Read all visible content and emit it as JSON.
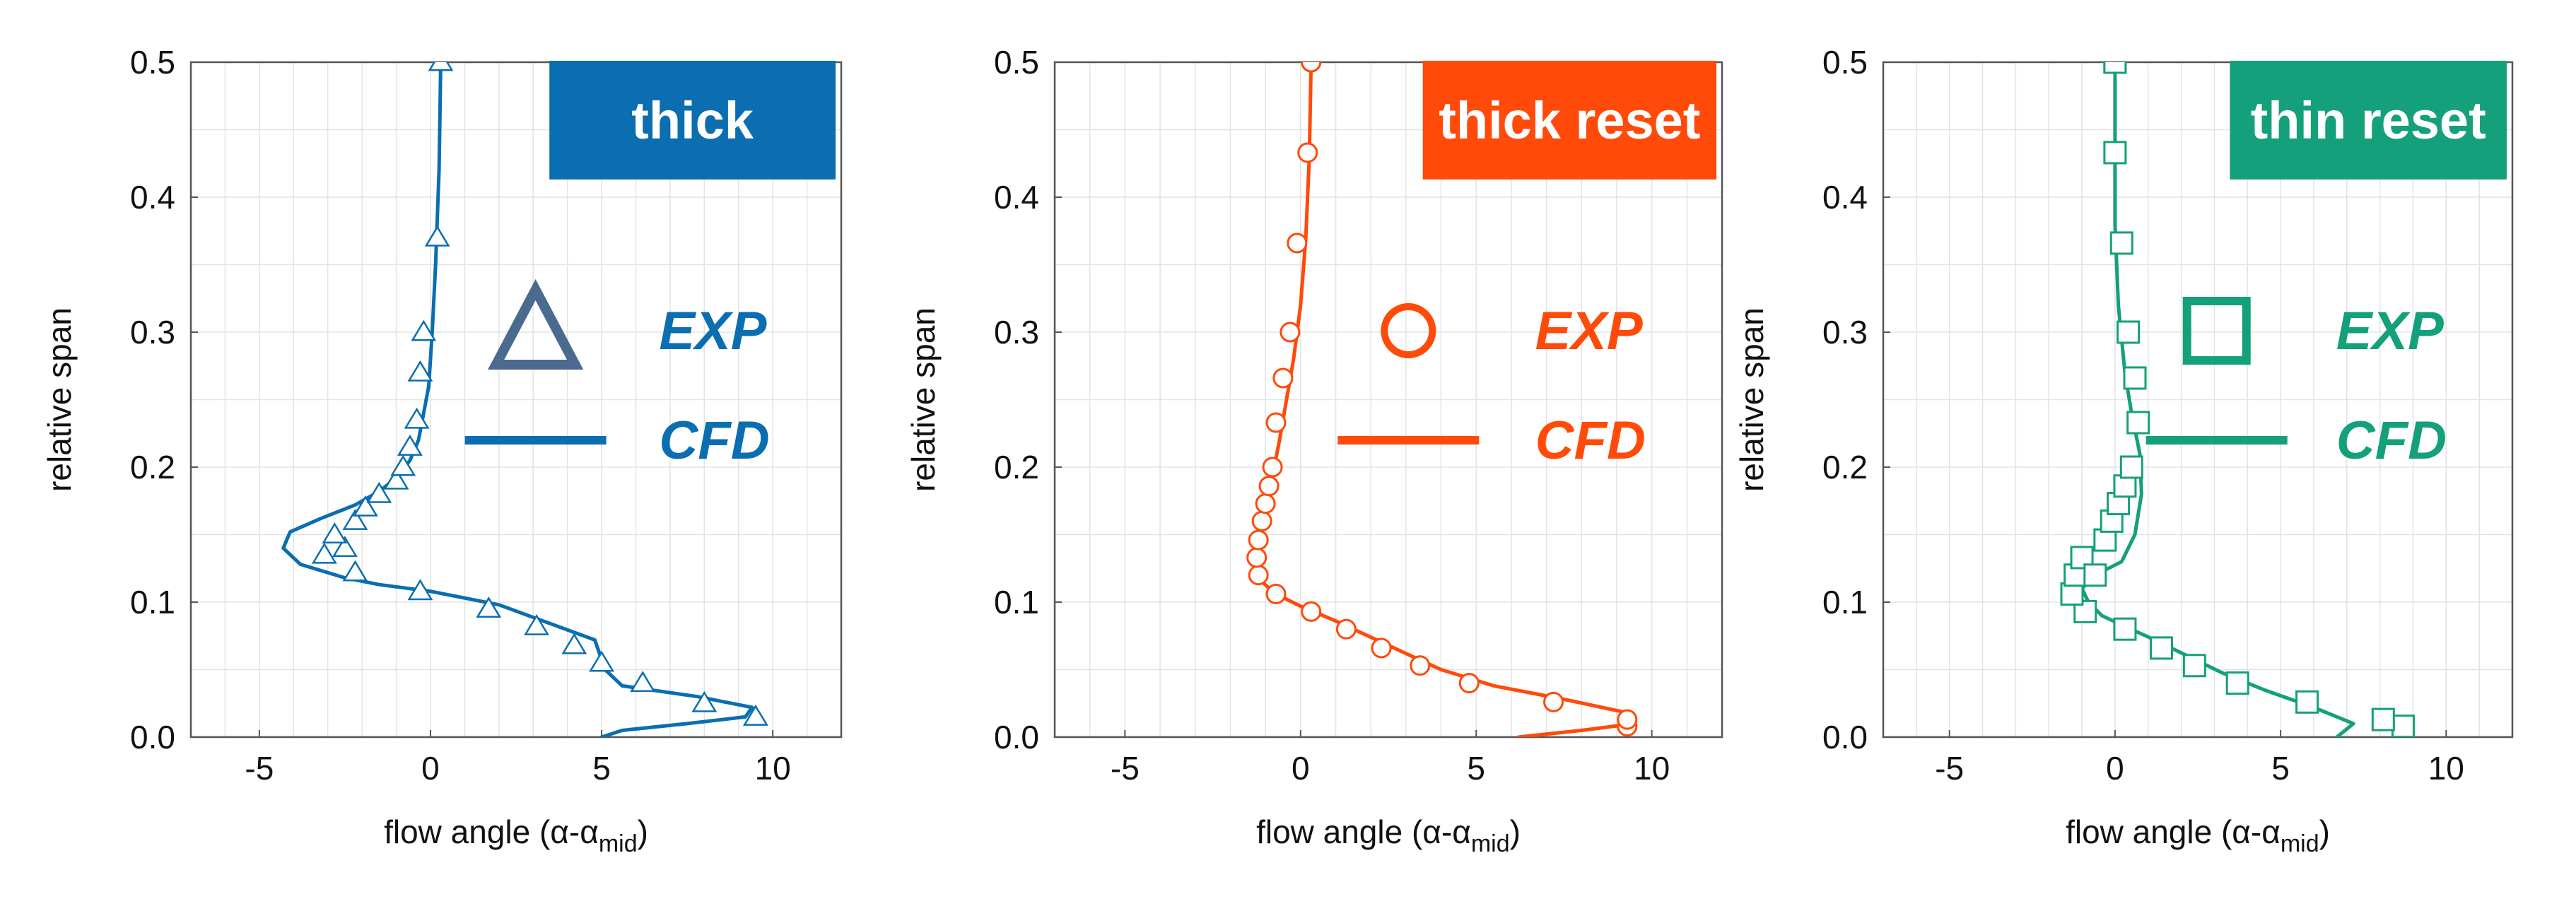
{
  "chart_data": [
    {
      "type": "line",
      "badge": "thick",
      "color": "#0a6eb0",
      "legend_color": "#4a6a8f",
      "marker": "triangle",
      "xlabel": "flow angle (α-αmid)",
      "xlabel_main": "flow angle (α-α",
      "xlabel_sub": "mid",
      "xlabel_tail": ")",
      "ylabel": "relative span",
      "xlim": [
        -7,
        12
      ],
      "ylim": [
        0,
        0.5
      ],
      "xticks": [
        "-5",
        "0",
        "5",
        "10"
      ],
      "xtick_values": [
        -5,
        0,
        5,
        10
      ],
      "yticks": [
        "0.0",
        "0.1",
        "0.2",
        "0.3",
        "0.4",
        "0.5"
      ],
      "ytick_values": [
        0,
        0.1,
        0.2,
        0.3,
        0.4,
        0.5
      ],
      "legend": [
        "EXP",
        "CFD"
      ],
      "series": [
        {
          "name": "EXP",
          "kind": "markers",
          "x": [
            9.5,
            8.0,
            6.2,
            5.0,
            4.2,
            3.1,
            1.7,
            -0.3,
            -2.2,
            -2.5,
            -2.8,
            -3.1,
            -2.2,
            -1.9,
            -1.5,
            -1.0,
            -0.8,
            -0.6,
            -0.4,
            -0.3,
            -0.2,
            0.2,
            0.3
          ],
          "y": [
            0.015,
            0.025,
            0.04,
            0.055,
            0.068,
            0.082,
            0.095,
            0.108,
            0.122,
            0.14,
            0.15,
            0.135,
            0.16,
            0.17,
            0.18,
            0.19,
            0.2,
            0.215,
            0.235,
            0.27,
            0.3,
            0.37,
            0.5
          ]
        },
        {
          "name": "CFD",
          "kind": "line",
          "x": [
            5.0,
            5.6,
            7.5,
            9.2,
            9.4,
            7.8,
            5.6,
            5.1,
            4.8,
            2.0,
            0.0,
            -1.5,
            -2.5,
            -3.8,
            -4.3,
            -4.1,
            -3.2,
            -2.2,
            -1.5,
            -1.0,
            -0.6,
            -0.35,
            -0.2,
            -0.05,
            0.05,
            0.15,
            0.25,
            0.3
          ],
          "y": [
            0.0,
            0.005,
            0.01,
            0.015,
            0.022,
            0.03,
            0.038,
            0.05,
            0.072,
            0.098,
            0.108,
            0.113,
            0.118,
            0.128,
            0.14,
            0.152,
            0.162,
            0.172,
            0.182,
            0.192,
            0.205,
            0.22,
            0.24,
            0.26,
            0.3,
            0.35,
            0.42,
            0.5
          ]
        }
      ]
    },
    {
      "type": "line",
      "badge": "thick reset",
      "color": "#ff4a0a",
      "legend_color": "#ff4a0a",
      "marker": "circle",
      "xlabel": "flow angle (α-αmid)",
      "xlabel_main": "flow angle (α-α",
      "xlabel_sub": "mid",
      "xlabel_tail": ")",
      "ylabel": "relative span",
      "xlim": [
        -7,
        12
      ],
      "ylim": [
        0,
        0.5
      ],
      "xticks": [
        "-5",
        "0",
        "5",
        "10"
      ],
      "xtick_values": [
        -5,
        0,
        5,
        10
      ],
      "yticks": [
        "0.0",
        "0.1",
        "0.2",
        "0.3",
        "0.4",
        "0.5"
      ],
      "ytick_values": [
        0,
        0.1,
        0.2,
        0.3,
        0.4,
        0.5
      ],
      "legend": [
        "EXP",
        "CFD"
      ],
      "series": [
        {
          "name": "EXP",
          "kind": "markers",
          "x": [
            9.3,
            9.3,
            7.2,
            4.8,
            3.4,
            2.3,
            1.3,
            0.3,
            -0.7,
            -1.2,
            -1.25,
            -1.2,
            -1.1,
            -1.0,
            -0.9,
            -0.8,
            -0.7,
            -0.5,
            -0.3,
            -0.1,
            0.2,
            0.3,
            0.3
          ],
          "y": [
            0.008,
            0.013,
            0.026,
            0.04,
            0.053,
            0.066,
            0.08,
            0.093,
            0.106,
            0.12,
            0.133,
            0.146,
            0.16,
            0.173,
            0.186,
            0.2,
            0.233,
            0.266,
            0.3,
            0.366,
            0.433,
            0.5,
            0.5
          ]
        },
        {
          "name": "CFD",
          "kind": "line",
          "x": [
            6.2,
            8.0,
            9.5,
            9.3,
            7.5,
            5.5,
            4.0,
            3.0,
            2.0,
            1.0,
            0.0,
            -0.7,
            -1.1,
            -1.25,
            -1.2,
            -1.05,
            -0.9,
            -0.75,
            -0.6,
            -0.4,
            -0.2,
            0.0,
            0.15,
            0.25,
            0.3
          ],
          "y": [
            0.0,
            0.005,
            0.01,
            0.018,
            0.028,
            0.038,
            0.05,
            0.062,
            0.074,
            0.086,
            0.097,
            0.106,
            0.115,
            0.125,
            0.14,
            0.16,
            0.18,
            0.2,
            0.22,
            0.25,
            0.28,
            0.32,
            0.37,
            0.43,
            0.5
          ]
        }
      ]
    },
    {
      "type": "line",
      "badge": "thin reset",
      "color": "#14a07a",
      "legend_color": "#14a07a",
      "marker": "square",
      "xlabel": "flow angle (α-αmid)",
      "xlabel_main": "flow angle (α-α",
      "xlabel_sub": "mid",
      "xlabel_tail": ")",
      "ylabel": "relative span",
      "xlim": [
        -7,
        12
      ],
      "ylim": [
        0,
        0.5
      ],
      "xticks": [
        "-5",
        "0",
        "5",
        "10"
      ],
      "xtick_values": [
        -5,
        0,
        5,
        10
      ],
      "yticks": [
        "0.0",
        "0.1",
        "0.2",
        "0.3",
        "0.4",
        "0.5"
      ],
      "ytick_values": [
        0,
        0.1,
        0.2,
        0.3,
        0.4,
        0.5
      ],
      "legend": [
        "EXP",
        "CFD"
      ],
      "series": [
        {
          "name": "EXP",
          "kind": "markers",
          "x": [
            8.7,
            8.1,
            5.8,
            3.7,
            2.4,
            1.4,
            0.3,
            -0.9,
            -1.3,
            -1.2,
            -1.0,
            -0.6,
            -0.3,
            -0.1,
            0.1,
            0.3,
            0.5,
            0.7,
            0.6,
            0.4,
            0.2,
            0.0,
            0.0,
            0.0
          ],
          "y": [
            0.008,
            0.013,
            0.026,
            0.04,
            0.053,
            0.066,
            0.08,
            0.093,
            0.106,
            0.12,
            0.133,
            0.12,
            0.146,
            0.16,
            0.173,
            0.186,
            0.2,
            0.233,
            0.266,
            0.3,
            0.366,
            0.433,
            0.5,
            0.5
          ]
        },
        {
          "name": "CFD",
          "kind": "line",
          "x": [
            6.7,
            7.2,
            6.0,
            4.5,
            3.2,
            2.2,
            1.2,
            0.3,
            -0.4,
            -0.8,
            -1.0,
            -0.6,
            0.2,
            0.6,
            0.8,
            0.75,
            0.5,
            0.3,
            0.1,
            0.0,
            0.0,
            0.0
          ],
          "y": [
            0.0,
            0.01,
            0.022,
            0.035,
            0.048,
            0.06,
            0.072,
            0.082,
            0.09,
            0.1,
            0.11,
            0.12,
            0.13,
            0.15,
            0.18,
            0.21,
            0.24,
            0.27,
            0.32,
            0.38,
            0.44,
            0.5
          ]
        }
      ]
    }
  ]
}
